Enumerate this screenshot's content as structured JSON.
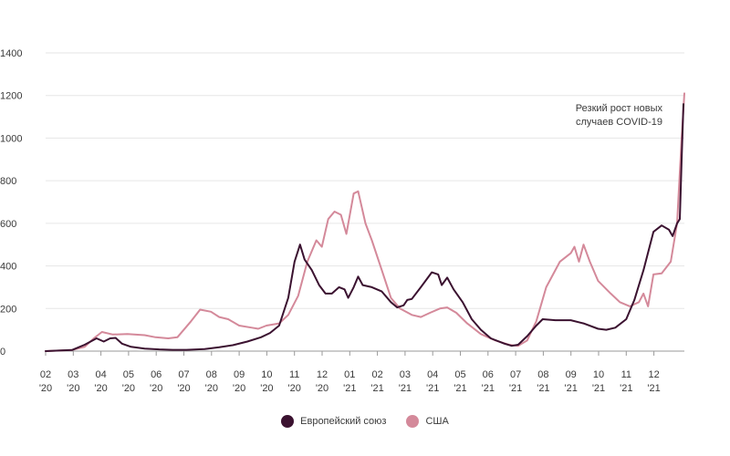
{
  "chart_data": {
    "type": "line",
    "title": "",
    "xlabel": "",
    "ylabel": "",
    "ylim": [
      0,
      1400
    ],
    "yticks": [
      0,
      200,
      400,
      600,
      800,
      1000,
      1200,
      1400
    ],
    "grid": "horizontal",
    "legend_position": "bottom-center",
    "annotation": {
      "lines": [
        "Резкий рост новых",
        "случаев COVID-19"
      ]
    },
    "x_ticks": [
      {
        "month": "02",
        "year": "'20"
      },
      {
        "month": "03",
        "year": "'20"
      },
      {
        "month": "04",
        "year": "'20"
      },
      {
        "month": "05",
        "year": "'20"
      },
      {
        "month": "06",
        "year": "'20"
      },
      {
        "month": "07",
        "year": "'20"
      },
      {
        "month": "08",
        "year": "'20"
      },
      {
        "month": "09",
        "year": "'20"
      },
      {
        "month": "10",
        "year": "'20"
      },
      {
        "month": "11",
        "year": "'20"
      },
      {
        "month": "12",
        "year": "'20"
      },
      {
        "month": "01",
        "year": "'21"
      },
      {
        "month": "02",
        "year": "'21"
      },
      {
        "month": "03",
        "year": "'21"
      },
      {
        "month": "04",
        "year": "'21"
      },
      {
        "month": "05",
        "year": "'21"
      },
      {
        "month": "06",
        "year": "'21"
      },
      {
        "month": "07",
        "year": "'21"
      },
      {
        "month": "08",
        "year": "'21"
      },
      {
        "month": "09",
        "year": "'21"
      },
      {
        "month": "10",
        "year": "'21"
      },
      {
        "month": "11",
        "year": "'21"
      },
      {
        "month": "12",
        "year": "'21"
      }
    ],
    "x_range": [
      "2020-02-01",
      "2022-01-04"
    ],
    "series": [
      {
        "name": "Европейский союз",
        "color": "#3b1230",
        "points": [
          [
            "2020-02-01",
            0
          ],
          [
            "2020-03-01",
            5
          ],
          [
            "2020-03-15",
            30
          ],
          [
            "2020-03-28",
            60
          ],
          [
            "2020-04-05",
            45
          ],
          [
            "2020-04-12",
            60
          ],
          [
            "2020-04-18",
            62
          ],
          [
            "2020-04-25",
            35
          ],
          [
            "2020-05-05",
            20
          ],
          [
            "2020-05-20",
            12
          ],
          [
            "2020-06-05",
            8
          ],
          [
            "2020-06-20",
            6
          ],
          [
            "2020-07-05",
            6
          ],
          [
            "2020-07-25",
            10
          ],
          [
            "2020-08-10",
            18
          ],
          [
            "2020-08-25",
            28
          ],
          [
            "2020-09-10",
            45
          ],
          [
            "2020-09-25",
            65
          ],
          [
            "2020-10-05",
            85
          ],
          [
            "2020-10-15",
            120
          ],
          [
            "2020-10-25",
            250
          ],
          [
            "2020-11-01",
            420
          ],
          [
            "2020-11-07",
            500
          ],
          [
            "2020-11-12",
            430
          ],
          [
            "2020-11-20",
            380
          ],
          [
            "2020-11-28",
            310
          ],
          [
            "2020-12-05",
            270
          ],
          [
            "2020-12-12",
            270
          ],
          [
            "2020-12-20",
            300
          ],
          [
            "2020-12-26",
            290
          ],
          [
            "2020-12-30",
            250
          ],
          [
            "2021-01-05",
            300
          ],
          [
            "2021-01-10",
            350
          ],
          [
            "2021-01-15",
            310
          ],
          [
            "2021-01-25",
            300
          ],
          [
            "2021-02-05",
            280
          ],
          [
            "2021-02-15",
            230
          ],
          [
            "2021-02-22",
            205
          ],
          [
            "2021-03-01",
            215
          ],
          [
            "2021-03-05",
            240
          ],
          [
            "2021-03-10",
            245
          ],
          [
            "2021-03-20",
            300
          ],
          [
            "2021-04-01",
            370
          ],
          [
            "2021-04-08",
            360
          ],
          [
            "2021-04-12",
            310
          ],
          [
            "2021-04-18",
            345
          ],
          [
            "2021-04-25",
            290
          ],
          [
            "2021-05-05",
            230
          ],
          [
            "2021-05-15",
            150
          ],
          [
            "2021-05-25",
            100
          ],
          [
            "2021-06-05",
            60
          ],
          [
            "2021-06-20",
            35
          ],
          [
            "2021-06-28",
            25
          ],
          [
            "2021-07-05",
            30
          ],
          [
            "2021-07-15",
            70
          ],
          [
            "2021-07-25",
            120
          ],
          [
            "2021-08-01",
            150
          ],
          [
            "2021-08-15",
            145
          ],
          [
            "2021-09-01",
            145
          ],
          [
            "2021-09-15",
            130
          ],
          [
            "2021-10-01",
            105
          ],
          [
            "2021-10-10",
            100
          ],
          [
            "2021-10-20",
            110
          ],
          [
            "2021-11-01",
            150
          ],
          [
            "2021-11-10",
            240
          ],
          [
            "2021-11-20",
            380
          ],
          [
            "2021-12-01",
            560
          ],
          [
            "2021-12-10",
            590
          ],
          [
            "2021-12-18",
            570
          ],
          [
            "2021-12-22",
            540
          ],
          [
            "2021-12-27",
            600
          ],
          [
            "2021-12-30",
            620
          ],
          [
            "2022-01-01",
            900
          ],
          [
            "2022-01-03",
            1160
          ]
        ]
      },
      {
        "name": "США",
        "color": "#d4899a",
        "points": [
          [
            "2020-02-01",
            0
          ],
          [
            "2020-03-01",
            5
          ],
          [
            "2020-03-15",
            20
          ],
          [
            "2020-03-25",
            60
          ],
          [
            "2020-04-03",
            90
          ],
          [
            "2020-04-15",
            78
          ],
          [
            "2020-05-01",
            80
          ],
          [
            "2020-05-20",
            75
          ],
          [
            "2020-06-01",
            65
          ],
          [
            "2020-06-15",
            60
          ],
          [
            "2020-06-25",
            65
          ],
          [
            "2020-07-10",
            140
          ],
          [
            "2020-07-20",
            195
          ],
          [
            "2020-08-01",
            185
          ],
          [
            "2020-08-10",
            160
          ],
          [
            "2020-08-20",
            150
          ],
          [
            "2020-09-01",
            120
          ],
          [
            "2020-09-15",
            110
          ],
          [
            "2020-09-22",
            105
          ],
          [
            "2020-10-01",
            120
          ],
          [
            "2020-10-15",
            130
          ],
          [
            "2020-10-25",
            170
          ],
          [
            "2020-11-05",
            260
          ],
          [
            "2020-11-15",
            420
          ],
          [
            "2020-11-25",
            520
          ],
          [
            "2020-12-01",
            490
          ],
          [
            "2020-12-08",
            620
          ],
          [
            "2020-12-15",
            655
          ],
          [
            "2020-12-22",
            640
          ],
          [
            "2020-12-28",
            550
          ],
          [
            "2021-01-05",
            740
          ],
          [
            "2021-01-10",
            750
          ],
          [
            "2021-01-18",
            600
          ],
          [
            "2021-01-25",
            520
          ],
          [
            "2021-02-05",
            380
          ],
          [
            "2021-02-15",
            250
          ],
          [
            "2021-02-25",
            200
          ],
          [
            "2021-03-10",
            170
          ],
          [
            "2021-03-20",
            160
          ],
          [
            "2021-03-30",
            180
          ],
          [
            "2021-04-10",
            200
          ],
          [
            "2021-04-18",
            205
          ],
          [
            "2021-04-28",
            180
          ],
          [
            "2021-05-10",
            130
          ],
          [
            "2021-05-25",
            80
          ],
          [
            "2021-06-10",
            50
          ],
          [
            "2021-06-25",
            30
          ],
          [
            "2021-07-05",
            25
          ],
          [
            "2021-07-15",
            50
          ],
          [
            "2021-07-25",
            140
          ],
          [
            "2021-08-05",
            300
          ],
          [
            "2021-08-20",
            420
          ],
          [
            "2021-09-01",
            460
          ],
          [
            "2021-09-05",
            490
          ],
          [
            "2021-09-10",
            420
          ],
          [
            "2021-09-15",
            500
          ],
          [
            "2021-09-22",
            420
          ],
          [
            "2021-10-01",
            330
          ],
          [
            "2021-10-15",
            270
          ],
          [
            "2021-10-25",
            230
          ],
          [
            "2021-11-05",
            210
          ],
          [
            "2021-11-15",
            230
          ],
          [
            "2021-11-20",
            270
          ],
          [
            "2021-11-25",
            210
          ],
          [
            "2021-12-01",
            360
          ],
          [
            "2021-12-10",
            365
          ],
          [
            "2021-12-20",
            420
          ],
          [
            "2021-12-27",
            600
          ],
          [
            "2022-01-01",
            1000
          ],
          [
            "2022-01-04",
            1210
          ]
        ]
      }
    ]
  }
}
